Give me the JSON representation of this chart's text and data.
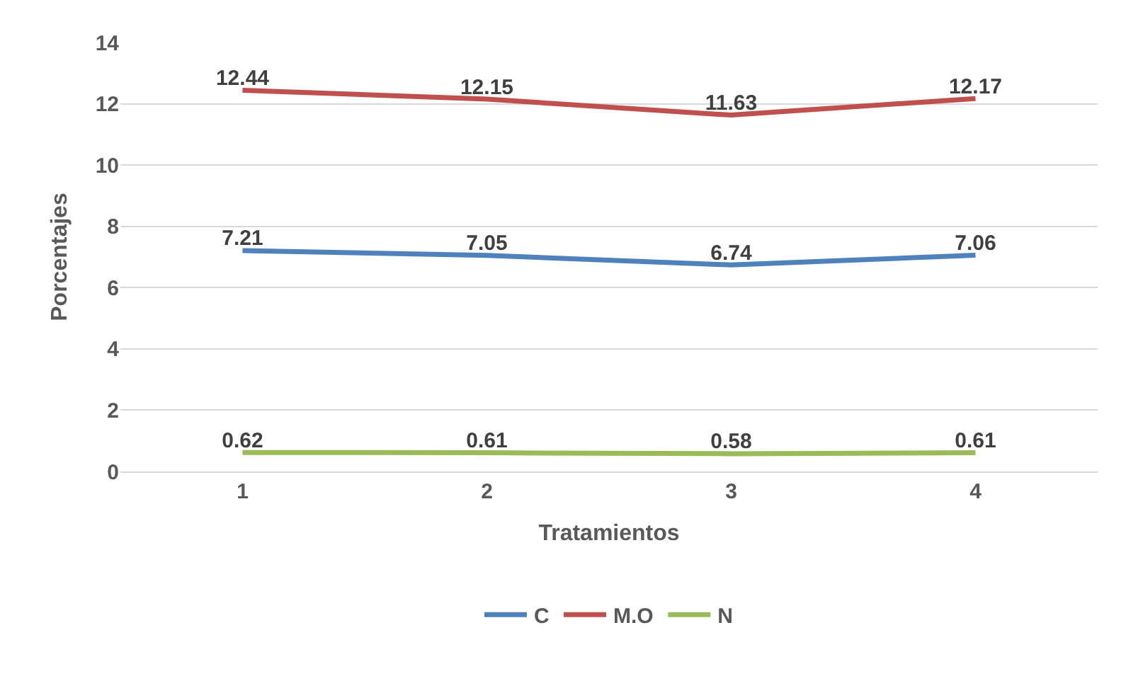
{
  "chart_data": {
    "type": "line",
    "xlabel": "Tratamientos",
    "ylabel": "Porcentajes",
    "categories": [
      "1",
      "2",
      "3",
      "4"
    ],
    "series": [
      {
        "name": "C",
        "color": "#4f81bd",
        "values": [
          7.21,
          7.05,
          6.74,
          7.06
        ]
      },
      {
        "name": "M.O",
        "color": "#c0504d",
        "values": [
          12.44,
          12.15,
          11.63,
          12.17
        ]
      },
      {
        "name": "N",
        "color": "#9bbb59",
        "values": [
          0.62,
          0.61,
          0.58,
          0.61
        ]
      }
    ],
    "ylim": [
      0,
      14
    ],
    "yticks": [
      0,
      2,
      4,
      6,
      8,
      10,
      12,
      14
    ],
    "grid": "y",
    "legend": "bottom",
    "marker": "none",
    "line_style": "solid",
    "data_labels": true
  }
}
